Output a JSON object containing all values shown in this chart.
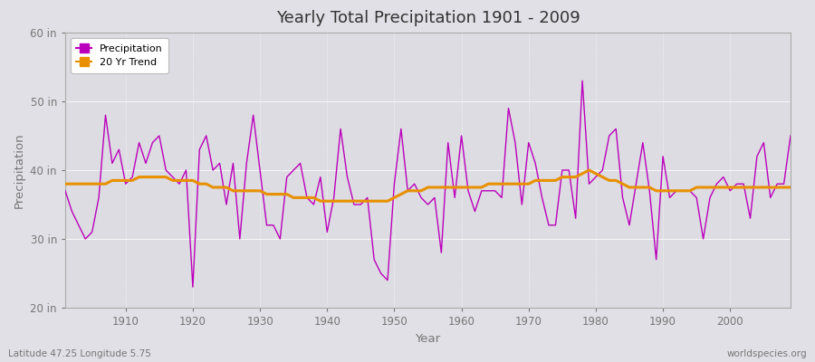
{
  "title": "Yearly Total Precipitation 1901 - 2009",
  "xlabel": "Year",
  "ylabel": "Precipitation",
  "subtitle_left": "Latitude 47.25 Longitude 5.75",
  "subtitle_right": "worldspecies.org",
  "bg_color": "#e0e0e6",
  "plot_bg_color": "#dcdce2",
  "line_color_precip": "#bb00bb",
  "line_color_trend": "#e89000",
  "ylim": [
    20,
    60
  ],
  "yticks": [
    20,
    30,
    40,
    50,
    60
  ],
  "ytick_labels": [
    "20 in",
    "30 in",
    "40 in",
    "50 in",
    "60 in"
  ],
  "years": [
    1901,
    1902,
    1903,
    1904,
    1905,
    1906,
    1907,
    1908,
    1909,
    1910,
    1911,
    1912,
    1913,
    1914,
    1915,
    1916,
    1917,
    1918,
    1919,
    1920,
    1921,
    1922,
    1923,
    1924,
    1925,
    1926,
    1927,
    1928,
    1929,
    1930,
    1931,
    1932,
    1933,
    1934,
    1935,
    1936,
    1937,
    1938,
    1939,
    1940,
    1941,
    1942,
    1943,
    1944,
    1945,
    1946,
    1947,
    1948,
    1949,
    1950,
    1951,
    1952,
    1953,
    1954,
    1955,
    1956,
    1957,
    1958,
    1959,
    1960,
    1961,
    1962,
    1963,
    1964,
    1965,
    1966,
    1967,
    1968,
    1969,
    1970,
    1971,
    1972,
    1973,
    1974,
    1975,
    1976,
    1977,
    1978,
    1979,
    1980,
    1981,
    1982,
    1983,
    1984,
    1985,
    1986,
    1987,
    1988,
    1989,
    1990,
    1991,
    1992,
    1993,
    1994,
    1995,
    1996,
    1997,
    1998,
    1999,
    2000,
    2001,
    2002,
    2003,
    2004,
    2005,
    2006,
    2007,
    2008,
    2009
  ],
  "precip": [
    37,
    34,
    32,
    30,
    31,
    36,
    48,
    41,
    43,
    38,
    39,
    44,
    41,
    44,
    45,
    40,
    39,
    38,
    40,
    23,
    43,
    45,
    40,
    41,
    35,
    41,
    30,
    41,
    48,
    40,
    32,
    32,
    30,
    39,
    40,
    41,
    36,
    35,
    39,
    31,
    36,
    46,
    39,
    35,
    35,
    36,
    27,
    25,
    24,
    38,
    46,
    37,
    38,
    36,
    35,
    36,
    28,
    44,
    36,
    45,
    37,
    34,
    37,
    37,
    37,
    36,
    49,
    44,
    35,
    44,
    41,
    36,
    32,
    32,
    40,
    40,
    33,
    53,
    38,
    39,
    40,
    45,
    46,
    36,
    32,
    38,
    44,
    37,
    27,
    42,
    36,
    37,
    37,
    37,
    36,
    30,
    36,
    38,
    39,
    37,
    38,
    38,
    33,
    42,
    44,
    36,
    38,
    38,
    45
  ],
  "trend": [
    38.0,
    38.0,
    38.0,
    38.0,
    38.0,
    38.0,
    38.0,
    38.5,
    38.5,
    38.5,
    38.5,
    39.0,
    39.0,
    39.0,
    39.0,
    39.0,
    38.5,
    38.5,
    38.5,
    38.5,
    38.0,
    38.0,
    37.5,
    37.5,
    37.5,
    37.0,
    37.0,
    37.0,
    37.0,
    37.0,
    36.5,
    36.5,
    36.5,
    36.5,
    36.0,
    36.0,
    36.0,
    36.0,
    35.5,
    35.5,
    35.5,
    35.5,
    35.5,
    35.5,
    35.5,
    35.5,
    35.5,
    35.5,
    35.5,
    36.0,
    36.5,
    37.0,
    37.0,
    37.0,
    37.5,
    37.5,
    37.5,
    37.5,
    37.5,
    37.5,
    37.5,
    37.5,
    37.5,
    38.0,
    38.0,
    38.0,
    38.0,
    38.0,
    38.0,
    38.0,
    38.5,
    38.5,
    38.5,
    38.5,
    39.0,
    39.0,
    39.0,
    39.5,
    40.0,
    39.5,
    39.0,
    38.5,
    38.5,
    38.0,
    37.5,
    37.5,
    37.5,
    37.5,
    37.0,
    37.0,
    37.0,
    37.0,
    37.0,
    37.0,
    37.5,
    37.5,
    37.5,
    37.5,
    37.5,
    37.5,
    37.5,
    37.5,
    37.5,
    37.5,
    37.5,
    37.5,
    37.5,
    37.5,
    37.5
  ]
}
